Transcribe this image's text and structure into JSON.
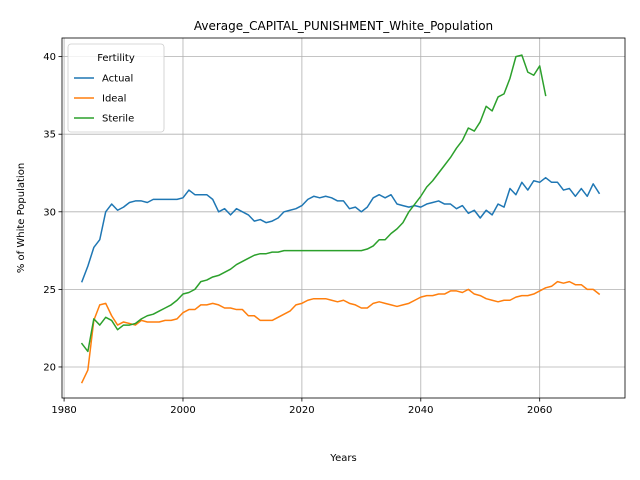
{
  "chart_data": {
    "type": "line",
    "title": "Average_CAPITAL_PUNISHMENT_White_Population",
    "xlabel": "Years",
    "ylabel": "% of White Population",
    "xlim": [
      1979.65,
      1974.35
    ],
    "ylim": [
      18.0,
      41.2
    ],
    "xticks": [
      1980,
      2000,
      2020,
      2040,
      2060
    ],
    "yticks": [
      20,
      25,
      30,
      35,
      40
    ],
    "grid": true,
    "legend": {
      "title": "Fertility",
      "placement": "upper-left"
    },
    "series": [
      {
        "name": "Actual",
        "color": "#1f77b4",
        "x": [
          1983,
          1984,
          1985,
          1986,
          1987,
          1988,
          1989,
          1990,
          1991,
          1992,
          1993,
          1994,
          1995,
          1996,
          1997,
          1998,
          1999,
          2000,
          2001,
          2002,
          2003,
          2004,
          2005,
          2006,
          2007,
          2008,
          2009,
          2010,
          2011,
          2012,
          2013,
          2014,
          2015,
          2016,
          2017,
          2018,
          2019,
          2020,
          2021,
          2022,
          2023,
          2024,
          2025,
          2026,
          2027,
          2028,
          2029,
          2030,
          2031,
          2032,
          2033,
          2034,
          2035,
          2036,
          2037,
          2038,
          2039,
          2040,
          2041,
          2042,
          2043,
          2044,
          2045,
          2046,
          2047,
          2048,
          2049,
          2050,
          2051,
          2052,
          2053,
          2054,
          2055,
          2056,
          2057,
          2058,
          2059,
          2060,
          2061,
          2062,
          2063,
          2064,
          2065,
          2066,
          2067,
          2068,
          2069,
          2070
        ],
        "values": [
          25.5,
          26.5,
          27.7,
          28.2,
          30.0,
          30.5,
          30.1,
          30.3,
          30.6,
          30.7,
          30.7,
          30.6,
          30.8,
          30.8,
          30.8,
          30.8,
          30.8,
          30.9,
          31.4,
          31.1,
          31.1,
          31.1,
          30.8,
          30.0,
          30.2,
          29.8,
          30.2,
          30.0,
          29.8,
          29.4,
          29.5,
          29.3,
          29.4,
          29.6,
          30.0,
          30.1,
          30.2,
          30.4,
          30.8,
          31.0,
          30.9,
          31.0,
          30.9,
          30.7,
          30.7,
          30.2,
          30.3,
          30.0,
          30.3,
          30.9,
          31.1,
          30.9,
          31.1,
          30.5,
          30.4,
          30.3,
          30.4,
          30.3,
          30.5,
          30.6,
          30.7,
          30.5,
          30.5,
          30.2,
          30.4,
          29.9,
          30.1,
          29.6,
          30.1,
          29.8,
          30.5,
          30.3,
          31.5,
          31.1,
          31.9,
          31.4,
          32.0,
          31.9,
          32.2,
          31.9,
          31.9,
          31.4,
          31.5,
          31.0,
          31.5,
          31.0,
          31.8,
          31.2
        ]
      },
      {
        "name": "Ideal",
        "color": "#ff7f0e",
        "x": [
          1983,
          1984,
          1985,
          1986,
          1987,
          1988,
          1989,
          1990,
          1991,
          1992,
          1993,
          1994,
          1995,
          1996,
          1997,
          1998,
          1999,
          2000,
          2001,
          2002,
          2003,
          2004,
          2005,
          2006,
          2007,
          2008,
          2009,
          2010,
          2011,
          2012,
          2013,
          2014,
          2015,
          2016,
          2017,
          2018,
          2019,
          2020,
          2021,
          2022,
          2023,
          2024,
          2025,
          2026,
          2027,
          2028,
          2029,
          2030,
          2031,
          2032,
          2033,
          2034,
          2035,
          2036,
          2037,
          2038,
          2039,
          2040,
          2041,
          2042,
          2043,
          2044,
          2045,
          2046,
          2047,
          2048,
          2049,
          2050,
          2051,
          2052,
          2053,
          2054,
          2055,
          2056,
          2057,
          2058,
          2059,
          2060,
          2061,
          2062,
          2063,
          2064,
          2065,
          2066,
          2067,
          2068,
          2069,
          2070
        ],
        "values": [
          19.0,
          19.8,
          23.0,
          24.0,
          24.1,
          23.3,
          22.7,
          22.9,
          22.8,
          22.7,
          23.0,
          22.9,
          22.9,
          22.9,
          23.0,
          23.0,
          23.1,
          23.5,
          23.7,
          23.7,
          24.0,
          24.0,
          24.1,
          24.0,
          23.8,
          23.8,
          23.7,
          23.7,
          23.3,
          23.3,
          23.0,
          23.0,
          23.0,
          23.2,
          23.4,
          23.6,
          24.0,
          24.1,
          24.3,
          24.4,
          24.4,
          24.4,
          24.3,
          24.2,
          24.3,
          24.1,
          24.0,
          23.8,
          23.8,
          24.1,
          24.2,
          24.1,
          24.0,
          23.9,
          24.0,
          24.1,
          24.3,
          24.5,
          24.6,
          24.6,
          24.7,
          24.7,
          24.9,
          24.9,
          24.8,
          25.0,
          24.7,
          24.6,
          24.4,
          24.3,
          24.2,
          24.3,
          24.3,
          24.5,
          24.6,
          24.6,
          24.7,
          24.9,
          25.1,
          25.2,
          25.5,
          25.4,
          25.5,
          25.3,
          25.3,
          25.0,
          25.0,
          24.7
        ]
      },
      {
        "name": "Sterile",
        "color": "#2ca02c",
        "x": [
          1983,
          1984,
          1985,
          1986,
          1987,
          1988,
          1989,
          1990,
          1991,
          1992,
          1993,
          1994,
          1995,
          1996,
          1997,
          1998,
          1999,
          2000,
          2001,
          2002,
          2003,
          2004,
          2005,
          2006,
          2007,
          2008,
          2009,
          2010,
          2011,
          2012,
          2013,
          2014,
          2015,
          2016,
          2017,
          2018,
          2019,
          2020,
          2021,
          2022,
          2023,
          2024,
          2025,
          2026,
          2027,
          2028,
          2029,
          2030,
          2031,
          2032,
          2033,
          2034,
          2035,
          2036,
          2037,
          2038,
          2039,
          2040,
          2041,
          2042,
          2043,
          2044,
          2045,
          2046,
          2047,
          2048,
          2049,
          2050,
          2051,
          2052,
          2053,
          2054,
          2055,
          2056,
          2057,
          2058,
          2059,
          2060,
          2061
        ],
        "values": [
          21.5,
          21.0,
          23.1,
          22.7,
          23.2,
          23.0,
          22.4,
          22.7,
          22.7,
          22.8,
          23.1,
          23.3,
          23.4,
          23.6,
          23.8,
          24.0,
          24.3,
          24.7,
          24.8,
          25.0,
          25.5,
          25.6,
          25.8,
          25.9,
          26.1,
          26.3,
          26.6,
          26.8,
          27.0,
          27.2,
          27.3,
          27.3,
          27.4,
          27.4,
          27.5,
          27.5,
          27.5,
          27.5,
          27.5,
          27.5,
          27.5,
          27.5,
          27.5,
          27.5,
          27.5,
          27.5,
          27.5,
          27.5,
          27.6,
          27.8,
          28.2,
          28.2,
          28.6,
          28.9,
          29.3,
          30.0,
          30.5,
          31.0,
          31.6,
          32.0,
          32.5,
          33.0,
          33.5,
          34.1,
          34.6,
          35.4,
          35.2,
          35.8,
          36.8,
          36.5,
          37.4,
          37.6,
          38.6,
          40.0,
          40.1,
          39.0,
          38.8,
          39.4,
          37.5
        ]
      }
    ]
  }
}
